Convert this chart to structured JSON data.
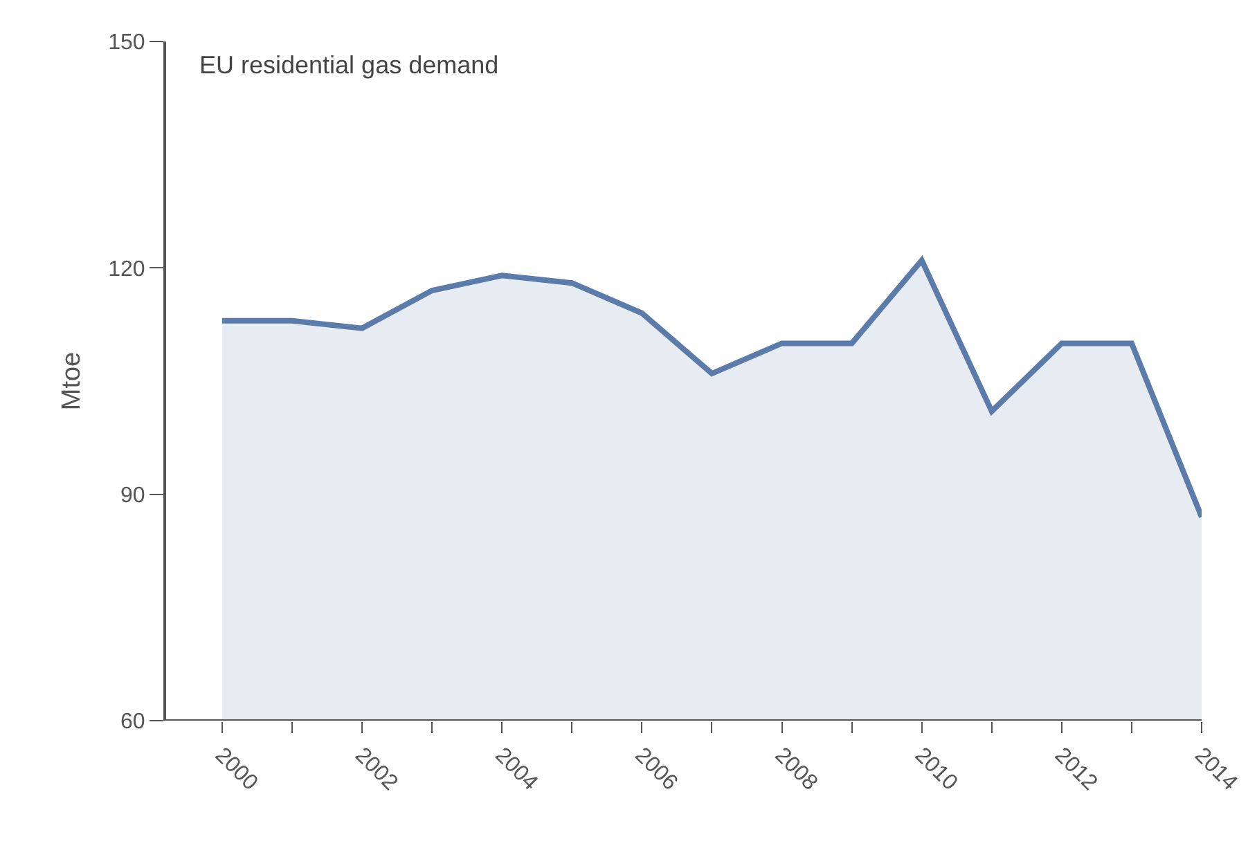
{
  "chart_data": {
    "type": "area",
    "title": "EU residential gas demand",
    "ylabel": "Mtoe",
    "x": [
      2000,
      2001,
      2002,
      2003,
      2004,
      2005,
      2006,
      2007,
      2008,
      2009,
      2010,
      2011,
      2012,
      2013,
      2014
    ],
    "series": [
      {
        "color": "#5b7bab",
        "values": [
          113,
          113,
          112,
          117,
          119,
          118,
          114,
          106,
          110,
          110,
          121,
          101,
          110,
          110,
          87
        ]
      }
    ],
    "xlim": [
      1999.2,
      2014
    ],
    "ylim": [
      60,
      150
    ],
    "yticks": [
      60,
      90,
      120,
      150
    ],
    "xticks": [
      2000,
      {
        "value": 2001,
        "label": null
      },
      2002,
      {
        "value": 2003,
        "label": null
      },
      2004,
      {
        "value": 2005,
        "label": null
      },
      2006,
      {
        "value": 2007,
        "label": null
      },
      2008,
      {
        "value": 2009,
        "label": null
      },
      2010,
      {
        "value": 2011,
        "label": null
      },
      2012,
      {
        "value": 2013,
        "label": null
      },
      2014
    ],
    "marker": "none",
    "line_style": "solid"
  }
}
